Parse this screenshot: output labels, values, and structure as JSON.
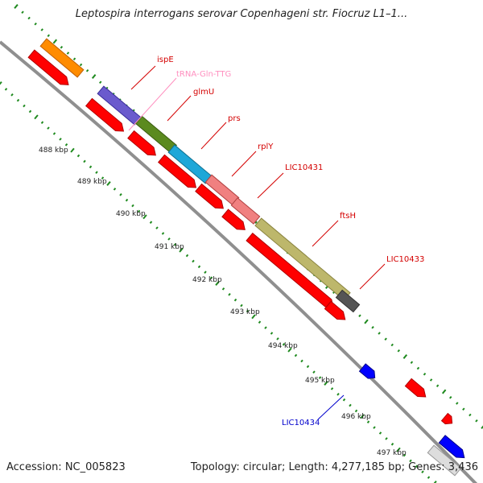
{
  "title": "Leptospira interrogans serovar Copenhageni str. Fiocruz L1–1...",
  "accession": "Accession: NC_005823",
  "topology": "Topology: circular; Length: 4,277,185 bp; Genes: 3,436",
  "colors": {
    "backbone": "#8f8f8f",
    "tick_dots": "#1f8a1f",
    "cds_arrow": "#ff0000",
    "label_red": "#d40000",
    "label_pink": "#ff8fbf",
    "label_blue": "#0000cc"
  },
  "kbp_labels": [
    "488 kbp",
    "489 kbp",
    "490 kbp",
    "491 kbp",
    "492 kbp",
    "493 kbp",
    "494 kbp",
    "495 kbp",
    "496 kbp",
    "497 kbp"
  ],
  "gene_labels": [
    {
      "text": "ispE",
      "color": "red"
    },
    {
      "text": "tRNA-Gln-TTG",
      "color": "pink"
    },
    {
      "text": "glmU",
      "color": "red"
    },
    {
      "text": "prs",
      "color": "red"
    },
    {
      "text": "rplY",
      "color": "red"
    },
    {
      "text": "LIC10431",
      "color": "red"
    },
    {
      "text": "ftsH",
      "color": "red"
    },
    {
      "text": "LIC10433",
      "color": "red"
    },
    {
      "text": "LIC10434",
      "color": "blue"
    }
  ]
}
